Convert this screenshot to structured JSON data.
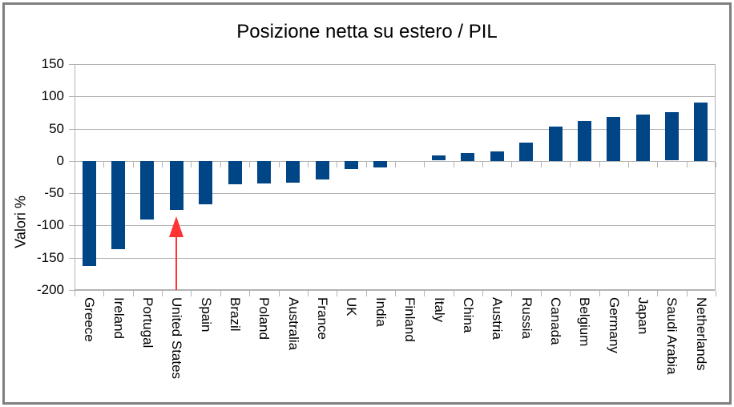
{
  "chart_data": {
    "type": "bar",
    "title": "Posizione netta su estero / PIL",
    "xlabel": "",
    "ylabel": "Valori %",
    "ylim": [
      -200,
      150
    ],
    "yticks": [
      150,
      100,
      50,
      0,
      -50,
      -100,
      -150,
      -200
    ],
    "grid": true,
    "legend": "none",
    "bar_color": "#004586",
    "gridline_color": "#b3b3b3",
    "categories": [
      "Greece",
      "Ireland",
      "Portugal",
      "United States",
      "Spain",
      "Brazil",
      "Poland",
      "Australia",
      "France",
      "UK",
      "India",
      "Finland",
      "Italy",
      "China",
      "Austria",
      "Russia",
      "Canada",
      "Belgium",
      "Germany",
      "Japan",
      "Saudi Arabia",
      "Netherlands"
    ],
    "values": [
      -162,
      -137,
      -91,
      -76,
      -67,
      -36,
      -35,
      -33,
      -28,
      -12,
      -10,
      0,
      8,
      12,
      15,
      28,
      53,
      62,
      68,
      72,
      75,
      90
    ],
    "annotation": {
      "type": "arrow",
      "target_category": "United States",
      "direction": "up",
      "color": "#ff3333"
    }
  }
}
